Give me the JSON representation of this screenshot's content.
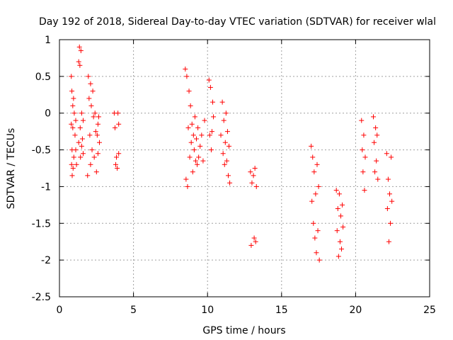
{
  "chart_data": {
    "type": "scatter",
    "title": "Day 192 of 2018, Sidereal Day-to-day VTEC variation (SDTVAR) for receiver wlal",
    "xlabel": "GPS time / hours",
    "ylabel": "SDTVAR / TECUs",
    "xlim": [
      0,
      25
    ],
    "ylim": [
      -2.5,
      1
    ],
    "x_ticks": [
      0,
      5,
      10,
      15,
      20,
      25
    ],
    "x_tick_labels": [
      "0",
      "5",
      "10",
      "15",
      "20",
      "25"
    ],
    "y_ticks": [
      1,
      0.5,
      0,
      -0.5,
      -1,
      -1.5,
      -2,
      -2.5
    ],
    "y_tick_labels": [
      "1",
      "0.5",
      "0",
      "-0.5",
      "-1",
      "-1.5",
      "-2",
      "-2.5"
    ],
    "grid": true,
    "marker": "+",
    "color": "#ff0000",
    "series": [
      {
        "name": "SDTVAR",
        "x": [
          0.8,
          0.8,
          0.82,
          0.84,
          0.85,
          0.86,
          0.9,
          0.9,
          0.92,
          0.95,
          0.97,
          1.0,
          1.05,
          1.1,
          1.1,
          1.15,
          1.3,
          1.3,
          1.35,
          1.38,
          1.4,
          1.42,
          1.45,
          1.5,
          1.5,
          1.55,
          1.6,
          1.6,
          1.9,
          1.95,
          2.0,
          2.05,
          2.1,
          2.1,
          2.15,
          2.2,
          2.25,
          2.3,
          2.35,
          2.4,
          2.45,
          2.5,
          2.55,
          2.6,
          2.6,
          2.65,
          2.7,
          3.7,
          3.75,
          3.8,
          3.85,
          3.9,
          3.95,
          4.0,
          4.0,
          8.5,
          8.55,
          8.6,
          8.65,
          8.7,
          8.75,
          8.8,
          8.85,
          8.9,
          8.95,
          9.0,
          9.05,
          9.1,
          9.15,
          9.2,
          9.25,
          9.3,
          9.35,
          9.4,
          9.5,
          9.6,
          9.7,
          9.8,
          10.1,
          10.15,
          10.2,
          10.25,
          10.3,
          10.35,
          10.4,
          10.9,
          11.0,
          11.05,
          11.1,
          11.15,
          11.2,
          11.25,
          11.3,
          11.35,
          11.4,
          11.45,
          11.5,
          12.9,
          12.95,
          13.0,
          13.1,
          13.15,
          13.2,
          13.25,
          13.3,
          17.0,
          17.05,
          17.1,
          17.15,
          17.2,
          17.25,
          17.3,
          17.35,
          17.4,
          17.45,
          17.5,
          17.55,
          18.7,
          18.75,
          18.8,
          18.85,
          18.9,
          18.95,
          19.0,
          19.05,
          19.1,
          19.15,
          20.4,
          20.45,
          20.5,
          20.55,
          20.6,
          20.65,
          21.2,
          21.25,
          21.3,
          21.35,
          21.4,
          21.45,
          21.5,
          22.1,
          22.15,
          22.2,
          22.25,
          22.3,
          22.35,
          22.4,
          22.45
        ],
        "y": [
          0.5,
          -0.15,
          -0.7,
          0.3,
          -0.5,
          -0.85,
          0.1,
          -0.2,
          -0.75,
          0.2,
          -0.6,
          0.0,
          -0.3,
          -0.1,
          -0.5,
          -0.7,
          0.7,
          -0.4,
          0.9,
          0.65,
          -0.2,
          -0.6,
          0.85,
          -0.45,
          0.0,
          -0.35,
          -0.1,
          -0.55,
          -0.85,
          0.5,
          0.2,
          -0.3,
          0.4,
          -0.7,
          0.1,
          -0.5,
          0.3,
          -0.05,
          -0.6,
          0.0,
          -0.25,
          -0.8,
          -0.3,
          -0.15,
          -0.55,
          -0.05,
          -0.4,
          0.0,
          -0.2,
          -0.7,
          -0.6,
          -0.75,
          0.0,
          -0.15,
          -0.55,
          0.6,
          -0.9,
          0.5,
          -1.0,
          -0.2,
          0.3,
          -0.6,
          0.1,
          -0.4,
          -0.15,
          -0.8,
          -0.3,
          -0.5,
          -0.05,
          -0.65,
          -0.35,
          -0.7,
          -0.2,
          -0.6,
          -0.45,
          -0.3,
          -0.65,
          -0.1,
          0.45,
          -0.3,
          0.35,
          -0.5,
          -0.25,
          0.15,
          -0.05,
          -0.3,
          0.15,
          -0.55,
          -0.1,
          -0.7,
          -0.4,
          0.0,
          -0.65,
          -0.25,
          -0.85,
          -0.45,
          -0.95,
          -0.8,
          -1.8,
          -0.95,
          -0.85,
          -1.7,
          -0.75,
          -1.75,
          -1.0,
          -0.45,
          -1.2,
          -0.6,
          -1.5,
          -0.8,
          -1.7,
          -1.1,
          -1.9,
          -0.7,
          -1.6,
          -1.0,
          -2.0,
          -1.05,
          -1.6,
          -1.3,
          -1.95,
          -1.1,
          -1.75,
          -1.4,
          -1.85,
          -1.25,
          -1.55,
          -0.1,
          -0.5,
          -0.8,
          -0.3,
          -1.05,
          -0.6,
          -0.05,
          -0.4,
          -0.8,
          -0.2,
          -0.65,
          -0.3,
          -0.9,
          -0.55,
          -1.3,
          -0.9,
          -1.75,
          -1.1,
          -1.5,
          -0.6,
          -1.2
        ]
      }
    ]
  }
}
